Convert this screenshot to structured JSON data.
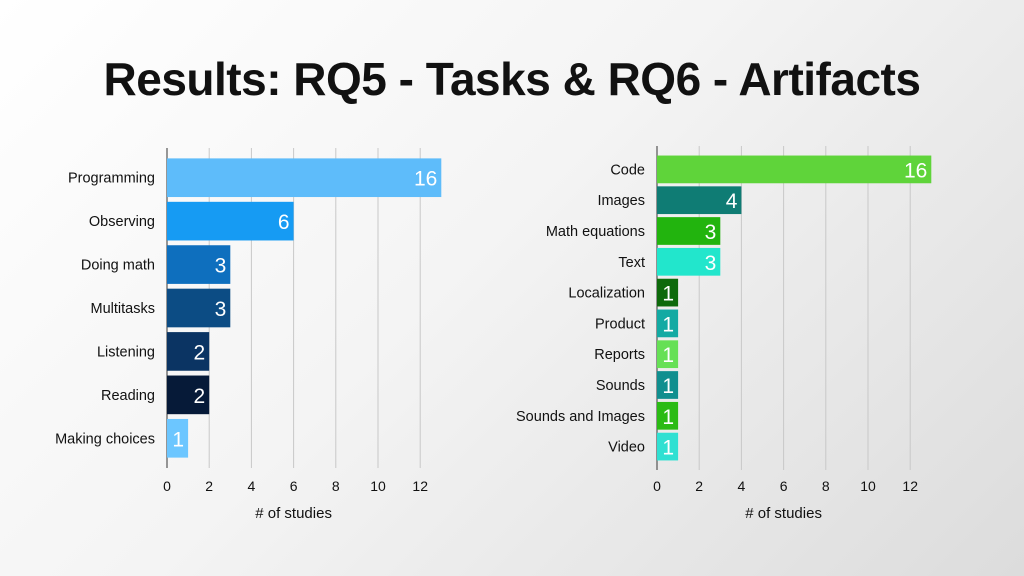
{
  "slide": {
    "title": "Results: RQ5 - Tasks & RQ6 - Artifacts"
  },
  "chart_data": [
    {
      "type": "bar",
      "orientation": "horizontal",
      "title": "",
      "categories": [
        "Programming",
        "Observing",
        "Doing math",
        "Multitasks",
        "Listening",
        "Reading",
        "Making choices"
      ],
      "values": [
        16,
        6,
        3,
        3,
        2,
        2,
        1
      ],
      "data_labels": [
        "16",
        "6",
        "3",
        "3",
        "2",
        "2",
        "1"
      ],
      "colors": [
        "#5ebcfa",
        "#169bf3",
        "#0e6fbe",
        "#0c4c84",
        "#0b3463",
        "#061a38",
        "#6cc6ff"
      ],
      "xlabel": "# of studies",
      "ylabel": "",
      "xlim": [
        0,
        13
      ],
      "xticks": [
        "0",
        "2",
        "4",
        "6",
        "8",
        "10",
        "12"
      ],
      "grid": true
    },
    {
      "type": "bar",
      "orientation": "horizontal",
      "title": "",
      "categories": [
        "Code",
        "Images",
        "Math equations",
        "Text",
        "Localization",
        "Product",
        "Reports",
        "Sounds",
        "Sounds and Images",
        "Video"
      ],
      "values": [
        16,
        4,
        3,
        3,
        1,
        1,
        1,
        1,
        1,
        1
      ],
      "data_labels": [
        "16",
        "4",
        "3",
        "3",
        "1",
        "1",
        "1",
        "1",
        "1",
        "1"
      ],
      "colors": [
        "#5fd43a",
        "#0f7c74",
        "#22b40e",
        "#22e6cc",
        "#0d6a0b",
        "#13aaa3",
        "#66e055",
        "#108f8f",
        "#2bbb14",
        "#30e0d2"
      ],
      "xlabel": "# of studies",
      "ylabel": "",
      "xlim": [
        0,
        13
      ],
      "xticks": [
        "0",
        "2",
        "4",
        "6",
        "8",
        "10",
        "12"
      ],
      "grid": true
    }
  ]
}
